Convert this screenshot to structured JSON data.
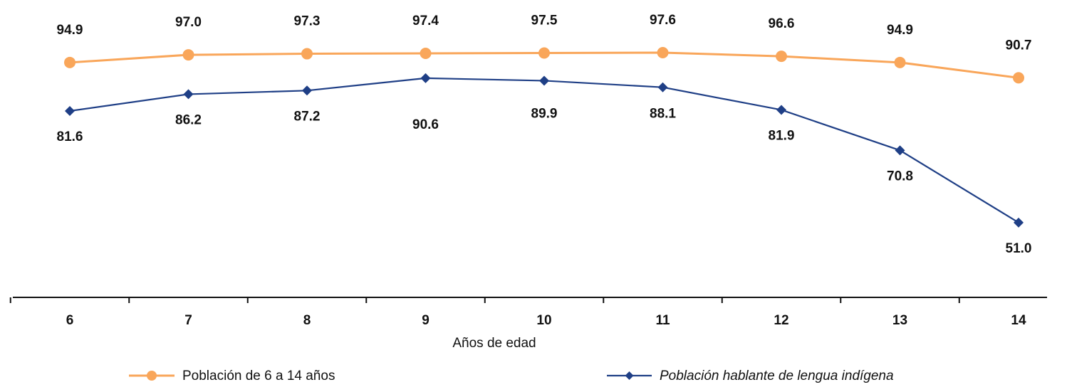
{
  "chart_data": {
    "type": "line",
    "categories": [
      "6",
      "7",
      "8",
      "9",
      "10",
      "11",
      "12",
      "13",
      "14"
    ],
    "xlabel": "Años de edad",
    "ylabel": "",
    "grid": false,
    "legend_position": "bottom",
    "series": [
      {
        "name": "Población de 6 a 14 años",
        "values": [
          94.9,
          97.0,
          97.3,
          97.4,
          97.5,
          97.6,
          96.6,
          94.9,
          90.7
        ],
        "value_labels": [
          "94.9",
          "97.0",
          "97.3",
          "97.4",
          "97.5",
          "97.6",
          "96.6",
          "94.9",
          "90.7"
        ],
        "color": "#F9A65A",
        "marker": "circle",
        "label_position": "above"
      },
      {
        "name": "Población hablante de lengua indígena",
        "values": [
          81.6,
          86.2,
          87.2,
          90.6,
          89.9,
          88.1,
          81.9,
          70.8,
          51.0
        ],
        "value_labels": [
          "81.6",
          "86.2",
          "87.2",
          "90.6",
          "89.9",
          "88.1",
          "81.9",
          "70.8",
          "51.0"
        ],
        "color": "#1F3F86",
        "marker": "diamond",
        "label_position": "below"
      }
    ]
  }
}
